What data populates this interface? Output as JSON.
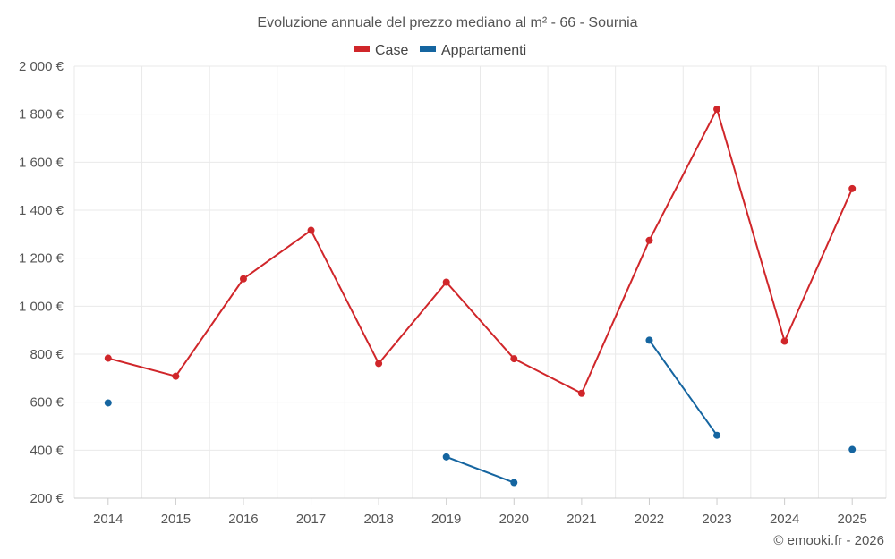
{
  "chart_data": {
    "type": "line",
    "title": "Evoluzione annuale del prezzo mediano al m² - 66 - Sournia",
    "categories": [
      "2014",
      "2015",
      "2016",
      "2017",
      "2018",
      "2019",
      "2020",
      "2021",
      "2022",
      "2023",
      "2024",
      "2025"
    ],
    "ylim": [
      200,
      2000
    ],
    "yticks": [
      200,
      400,
      600,
      800,
      1000,
      1200,
      1400,
      1600,
      1800,
      2000
    ],
    "ytick_labels": [
      "200 €",
      "400 €",
      "600 €",
      "800 €",
      "1 000 €",
      "1 200 €",
      "1 400 €",
      "1 600 €",
      "1 800 €",
      "2 000 €"
    ],
    "grid": true,
    "legend_position": "top-center",
    "series": [
      {
        "name": "Case",
        "color": "#d0262a",
        "values": [
          783,
          708,
          1114,
          1316,
          761,
          1100,
          781,
          637,
          1274,
          1821,
          854,
          1490
        ]
      },
      {
        "name": "Appartamenti",
        "color": "#1565a0",
        "values": [
          597,
          null,
          null,
          null,
          null,
          372,
          265,
          null,
          858,
          462,
          null,
          403
        ]
      }
    ],
    "credit": "© emooki.fr - 2026"
  }
}
